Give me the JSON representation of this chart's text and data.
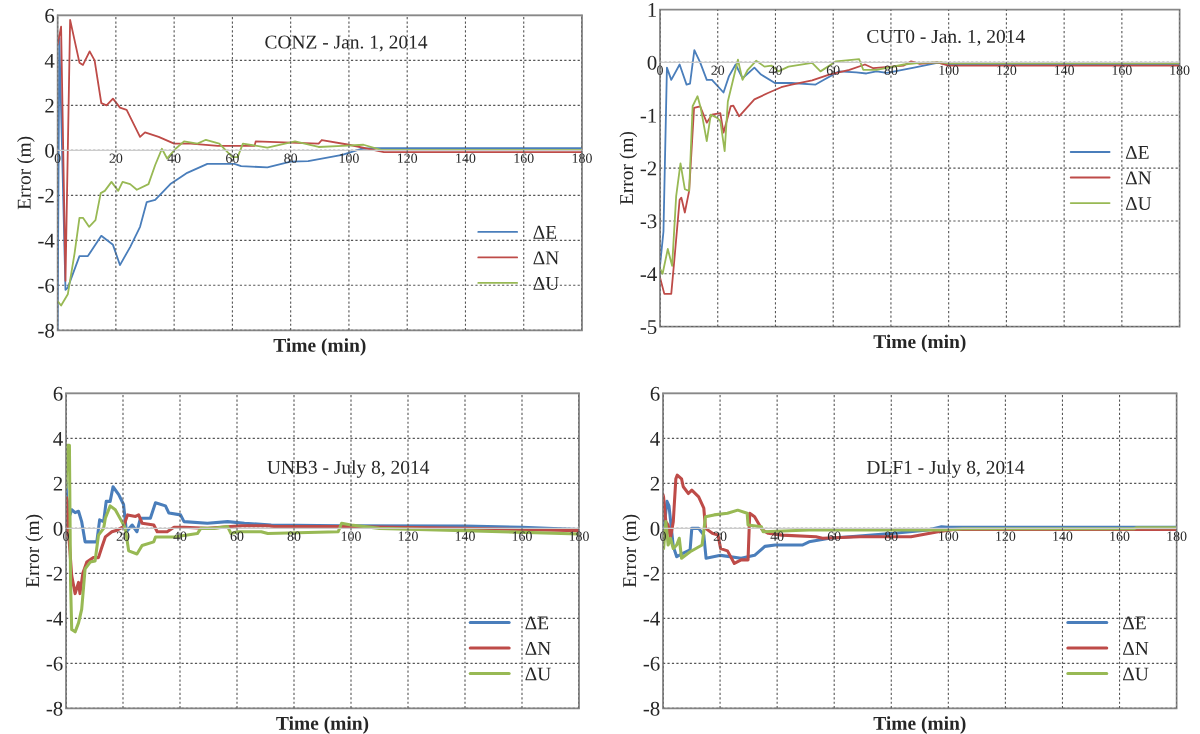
{
  "chart_data": [
    {
      "type": "line",
      "title": "CONZ - Jan. 1, 2014",
      "xlabel": "Time (min)",
      "ylabel": "Error (m)",
      "xlim": [
        0,
        180
      ],
      "xticks": [
        0,
        20,
        40,
        60,
        80,
        100,
        120,
        140,
        160,
        180
      ],
      "ylim": [
        -8,
        6
      ],
      "yticks": [
        -8,
        -6,
        -4,
        -2,
        0,
        2,
        4,
        6
      ],
      "grid": true,
      "legend": "bottom right",
      "line_style": "solid",
      "marker": "none",
      "series": [
        {
          "name": "ΔE",
          "color": "#4a7ebb",
          "x": [
            0,
            0.6,
            2.7,
            3.5,
            7.5,
            10.4,
            15,
            19,
            21.4,
            24.9,
            28.3,
            30.6,
            33.5,
            38.7,
            42.2,
            44.5,
            51.4,
            60.7,
            63,
            72,
            80,
            86,
            97.7,
            104,
            108,
            180
          ],
          "values": [
            -8,
            5.0,
            -6.2,
            -6.1,
            -4.7,
            -4.7,
            -3.8,
            -4.2,
            -5.1,
            -4.3,
            -3.4,
            -2.3,
            -2.2,
            -1.5,
            -1.2,
            -1.0,
            -0.6,
            -0.6,
            -0.7,
            -0.76,
            -0.5,
            -0.48,
            -0.2,
            0.06,
            0.1,
            0.1
          ]
        },
        {
          "name": "ΔN",
          "color": "#be4b48",
          "x": [
            0,
            1.2,
            2.7,
            4.3,
            7.5,
            8.7,
            11,
            12.7,
            15,
            16.8,
            19,
            21.4,
            23.7,
            28.3,
            30,
            34.7,
            40,
            45.7,
            55,
            59.5,
            67.6,
            68,
            89.6,
            90.7,
            100,
            112,
            180
          ],
          "values": [
            4.7,
            5.5,
            -5.8,
            5.8,
            3.9,
            3.8,
            4.4,
            4.0,
            2.1,
            2.0,
            2.3,
            1.9,
            1.8,
            0.6,
            0.8,
            0.6,
            0.3,
            0.3,
            0.2,
            0.2,
            0.2,
            0.4,
            0.3,
            0.46,
            0.25,
            -0.08,
            -0.08
          ]
        },
        {
          "name": "ΔU",
          "color": "#98b954",
          "x": [
            0,
            1.2,
            3.5,
            5.8,
            7.5,
            8.7,
            10.8,
            13,
            14.8,
            16.2,
            18.5,
            20.8,
            22.3,
            24.9,
            27.2,
            31.2,
            33.5,
            35.8,
            37.6,
            40.5,
            43.4,
            48,
            50.9,
            55.5,
            60,
            61.8,
            63.6,
            72,
            81.5,
            89.6,
            97.7,
            105,
            111,
            180
          ],
          "values": [
            -6.7,
            -6.9,
            -6.4,
            -4.6,
            -3.0,
            -3.0,
            -3.4,
            -3.1,
            -1.9,
            -1.8,
            -1.4,
            -1.8,
            -1.4,
            -1.5,
            -1.75,
            -1.5,
            -0.65,
            0.07,
            -0.36,
            0.07,
            0.4,
            0.3,
            0.47,
            0.3,
            -0.3,
            -0.3,
            0.3,
            0.12,
            0.4,
            0.15,
            0.2,
            0.25,
            0.02,
            0.02
          ]
        }
      ]
    },
    {
      "type": "line",
      "title": "CUT0 - Jan. 1, 2014",
      "xlabel": "Time (min)",
      "ylabel": "Error (m)",
      "xlim": [
        0,
        180
      ],
      "xticks": [
        0,
        20,
        40,
        60,
        80,
        100,
        120,
        140,
        160,
        180
      ],
      "ylim": [
        -5,
        1
      ],
      "yticks": [
        -5,
        -4,
        -3,
        -2,
        -1,
        0,
        1
      ],
      "grid": true,
      "legend": "bottom right",
      "line_style": "solid",
      "marker": "none",
      "series": [
        {
          "name": "ΔE",
          "color": "#4a7ebb",
          "x": [
            0,
            1.2,
            2.4,
            3.9,
            6.8,
            9.2,
            10.4,
            11.9,
            13.9,
            16.2,
            18,
            22,
            23.9,
            26.2,
            28.6,
            32.7,
            35,
            39.8,
            45.6,
            53.9,
            56.8,
            62,
            68,
            71.5,
            75,
            78.6,
            88,
            96,
            100,
            180
          ],
          "values": [
            -3.85,
            -3.2,
            -0.1,
            -0.33,
            -0.04,
            -0.42,
            -0.4,
            0.23,
            0,
            -0.33,
            -0.33,
            -0.57,
            -0.26,
            -0.04,
            -0.3,
            -0.1,
            -0.23,
            -0.39,
            -0.39,
            -0.42,
            -0.33,
            -0.17,
            -0.19,
            -0.21,
            -0.17,
            -0.2,
            -0.1,
            -0.01,
            -0.03,
            -0.03
          ]
        },
        {
          "name": "ΔN",
          "color": "#be4b48",
          "x": [
            0,
            1.5,
            3.9,
            5,
            6.8,
            7.4,
            8.6,
            10.1,
            11.8,
            13.9,
            16.2,
            18,
            20.9,
            22,
            24.5,
            25.4,
            27.4,
            32.7,
            37.4,
            42,
            45.6,
            52.7,
            58.6,
            65.6,
            71,
            73.9,
            84.5,
            87,
            90,
            96,
            100,
            180
          ],
          "values": [
            -4.07,
            -4.38,
            -4.38,
            -3.72,
            -2.6,
            -2.56,
            -2.84,
            -2.43,
            -0.86,
            -0.83,
            -1.14,
            -0.99,
            -0.96,
            -1.33,
            -0.83,
            -0.82,
            -1.02,
            -0.7,
            -0.58,
            -0.47,
            -0.42,
            -0.34,
            -0.23,
            -0.14,
            -0.04,
            -0.11,
            -0.06,
            0.02,
            -0.03,
            0,
            -0.06,
            -0.06
          ]
        },
        {
          "name": "ΔU",
          "color": "#98b954",
          "x": [
            0,
            0.9,
            2.7,
            4.2,
            5.6,
            7.1,
            8.6,
            10.1,
            11.3,
            13,
            14.1,
            16.2,
            17.6,
            19.8,
            20.9,
            22.4,
            23.5,
            27,
            28.6,
            30.4,
            33.3,
            36.2,
            38.6,
            41,
            44.5,
            52.7,
            55.6,
            61,
            69,
            70.4,
            75,
            84.5,
            90,
            97.4,
            100,
            180
          ],
          "values": [
            -3.9,
            -4.0,
            -3.53,
            -3.85,
            -2.53,
            -1.91,
            -2.4,
            -2.43,
            -0.83,
            -0.64,
            -0.86,
            -1.49,
            -0.99,
            -1.05,
            -1.11,
            -1.68,
            -0.74,
            0.05,
            -0.33,
            -0.14,
            0.03,
            -0.08,
            -0.06,
            -0.17,
            -0.08,
            -0.01,
            -0.17,
            0.02,
            0.06,
            -0.14,
            -0.14,
            -0.04,
            -0.01,
            0,
            -0.02,
            -0.02
          ]
        }
      ]
    },
    {
      "type": "line",
      "title": "UNB3 - July 8, 2014",
      "xlabel": "Time (min)",
      "ylabel": "Error (m)",
      "xlim": [
        0,
        180
      ],
      "xticks": [
        0,
        20,
        40,
        60,
        80,
        100,
        120,
        140,
        160,
        180
      ],
      "ylim": [
        -8,
        6
      ],
      "yticks": [
        -8,
        -6,
        -4,
        -2,
        0,
        2,
        4,
        6
      ],
      "grid": true,
      "legend": "bottom right",
      "line_style": "solid",
      "marker": "none",
      "series": [
        {
          "name": "ΔE",
          "color": "#4a7ebb",
          "x": [
            0,
            0.2,
            1.4,
            2,
            3.2,
            4.4,
            5.5,
            6.7,
            10.8,
            11.8,
            13.2,
            14.1,
            15.5,
            16.5,
            18.5,
            20.2,
            21.2,
            23.2,
            24.9,
            26.1,
            29.6,
            31.4,
            34.9,
            36.1,
            40.2,
            41.4,
            49.6,
            56.7,
            62.6,
            72,
            96.7,
            140,
            160,
            180
          ],
          "values": [
            2.1,
            1.4,
            0.6,
            0.83,
            0.7,
            0.76,
            0.3,
            -0.6,
            -0.6,
            0.38,
            0.3,
            1.2,
            1.2,
            1.85,
            1.5,
            1.06,
            -0.15,
            0.15,
            -0.15,
            0.45,
            0.45,
            1.14,
            1.0,
            0.68,
            0.6,
            0.3,
            0.23,
            0.3,
            0.23,
            0.15,
            0.12,
            0.1,
            0.05,
            -0.05
          ]
        },
        {
          "name": "ΔN",
          "color": "#be4b48",
          "x": [
            0,
            0.2,
            0.8,
            2,
            3.2,
            4.4,
            4.9,
            5.9,
            7.3,
            9.6,
            11.4,
            12.6,
            13.8,
            16.1,
            17.9,
            20.2,
            21.6,
            24.4,
            25.5,
            26.7,
            30.8,
            32,
            35.5,
            37.9,
            41.4,
            49.6,
            61.4,
            70.8,
            73,
            96.7,
            140,
            180
          ],
          "values": [
            -0.3,
            1.36,
            0,
            -2.1,
            -2.9,
            -2.4,
            -2.9,
            -2.0,
            -1.5,
            -1.3,
            -1.3,
            -0.83,
            -0.38,
            -0.15,
            -0.08,
            0.08,
            0.6,
            0.53,
            0.6,
            0.23,
            0.15,
            -0.15,
            -0.15,
            0.05,
            0.05,
            0,
            0.12,
            0.12,
            0.08,
            0.08,
            0,
            -0.1
          ]
        },
        {
          "name": "ΔU",
          "color": "#98b954",
          "x": [
            0,
            0.5,
            1.2,
            1.6,
            2,
            3.2,
            4.4,
            5.5,
            6.7,
            8.5,
            10.2,
            11.4,
            13.2,
            13.8,
            15.5,
            17.3,
            19.6,
            20.8,
            22,
            24.9,
            26.7,
            30.8,
            31.4,
            37.9,
            46.1,
            47.3,
            52,
            56.7,
            57.9,
            60.2,
            68.5,
            70.8,
            95.5,
            96.7,
            100,
            110,
            140,
            180
          ],
          "values": [
            1.8,
            3.7,
            3.7,
            -2.4,
            -4.5,
            -4.6,
            -4.2,
            -3.6,
            -1.8,
            -1.5,
            -1.45,
            -0.3,
            0,
            0.45,
            1.0,
            0.83,
            0.3,
            0,
            -1.0,
            -1.14,
            -0.76,
            -0.6,
            -0.38,
            -0.38,
            -0.23,
            0,
            0,
            0.08,
            -0.23,
            -0.15,
            -0.15,
            -0.23,
            -0.15,
            0.23,
            0.15,
            0,
            -0.1,
            -0.25
          ]
        }
      ]
    },
    {
      "type": "line",
      "title": "DLF1 - July 8, 2014",
      "xlabel": "Time (min)",
      "ylabel": "Error (m)",
      "xlim": [
        0,
        180
      ],
      "xticks": [
        0,
        20,
        40,
        60,
        80,
        100,
        120,
        140,
        160,
        180
      ],
      "ylim": [
        -8,
        6
      ],
      "yticks": [
        -8,
        -6,
        -4,
        -2,
        0,
        2,
        4,
        6
      ],
      "grid": true,
      "legend": "bottom right",
      "line_style": "solid",
      "marker": "none",
      "series": [
        {
          "name": "ΔE",
          "color": "#4a7ebb",
          "x": [
            0,
            0.6,
            1.4,
            2.1,
            3.6,
            4.8,
            7.1,
            9.5,
            10.1,
            12.5,
            14.3,
            15.1,
            20.2,
            27.4,
            32.1,
            35.7,
            39.3,
            48.8,
            51.2,
            58.3,
            65.5,
            81,
            92.9,
            97.6,
            100,
            180
          ],
          "values": [
            0,
            0.3,
            1.2,
            1.0,
            -0.8,
            -1.26,
            -1.1,
            -0.96,
            0,
            0,
            -0.3,
            -1.33,
            -1.2,
            -1.33,
            -1.2,
            -0.8,
            -0.74,
            -0.74,
            -0.6,
            -0.44,
            -0.37,
            -0.22,
            -0.07,
            0.07,
            0.05,
            0.05
          ]
        },
        {
          "name": "ΔN",
          "color": "#be4b48",
          "x": [
            0,
            0.2,
            1,
            1.8,
            2.6,
            3.6,
            4.5,
            5,
            6.5,
            7.1,
            8.9,
            10.1,
            12.5,
            14.3,
            14.9,
            17.3,
            19.3,
            20.2,
            22.6,
            25,
            27.4,
            29.8,
            30.4,
            32.1,
            34.8,
            36.9,
            41.7,
            53.6,
            55.9,
            69,
            86.9,
            96.4,
            102,
            180
          ],
          "values": [
            1.5,
            1.4,
            0.3,
            0.15,
            -0.44,
            0.3,
            2.2,
            2.37,
            2.2,
            1.85,
            1.55,
            1.7,
            1.4,
            0.9,
            0,
            -0.22,
            -0.3,
            -0.9,
            -1.0,
            -1.56,
            -1.4,
            -1.4,
            0.67,
            0.52,
            -0.07,
            -0.22,
            -0.3,
            -0.37,
            -0.44,
            -0.37,
            -0.37,
            -0.15,
            -0.05,
            -0.05
          ]
        },
        {
          "name": "ΔU",
          "color": "#98b954",
          "x": [
            0,
            0.2,
            1,
            1.8,
            2.6,
            3.6,
            4.8,
            5.7,
            6.5,
            9.5,
            13.7,
            14.9,
            17.9,
            22.6,
            26.2,
            29.5,
            29.8,
            34.5,
            35.1,
            51.2,
            98.8,
            105,
            165,
            166,
            180
          ],
          "values": [
            -0.15,
            -0.9,
            0.3,
            -0.74,
            -0.44,
            -0.9,
            -0.74,
            -0.44,
            -1.33,
            -1.04,
            -0.74,
            0.52,
            0.6,
            0.67,
            0.81,
            0.67,
            0.15,
            0.07,
            -0.15,
            -0.07,
            -0.07,
            -0.02,
            -0.02,
            0.03,
            0.03
          ]
        }
      ]
    }
  ]
}
